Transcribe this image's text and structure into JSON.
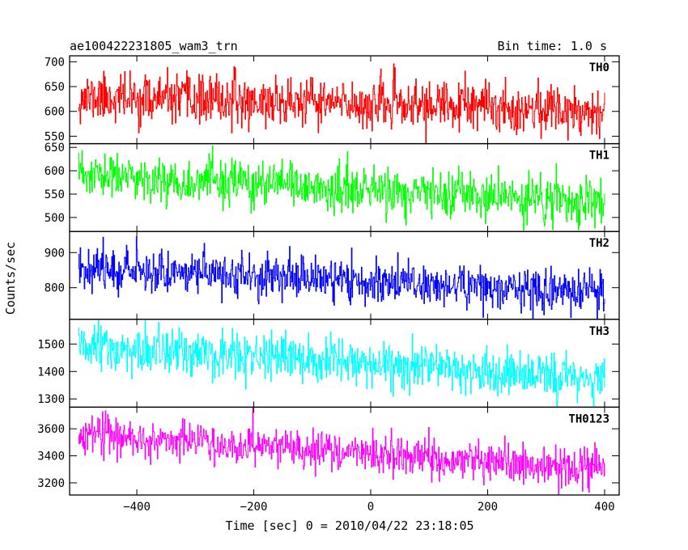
{
  "chart_data": {
    "type": "line",
    "title": "ae100422231805_wam3_trn",
    "subtitle": "Bin time: 1.0 s",
    "xlabel": "Time [sec] 0 = 2010/04/22 23:18:05",
    "ylabel": "Counts/sec",
    "xlim": [
      -515,
      425
    ],
    "x_ticks": [
      -400,
      -200,
      0,
      200,
      400
    ],
    "x_tick_labels": [
      "−400",
      "−200",
      "0",
      "200",
      "400"
    ],
    "x_data_range": [
      -500,
      400
    ],
    "x_step": 1.0,
    "grid": false,
    "legend": "none",
    "panels": [
      {
        "label": "TH0",
        "color": "#ff0000",
        "ylim": [
          535,
          712
        ],
        "y_ticks": [
          550,
          600,
          650,
          700
        ],
        "y_tick_labels": [
          "550",
          "600",
          "650",
          "700"
        ],
        "trend_start": 628,
        "trend_end": 603,
        "noise_sd": 24,
        "seed": 11
      },
      {
        "label": "TH1",
        "color": "#00ff00",
        "ylim": [
          470,
          658
        ],
        "y_ticks": [
          500,
          550,
          600,
          650
        ],
        "y_tick_labels": [
          "500",
          "550",
          "600",
          "650"
        ],
        "trend_start": 590,
        "trend_end": 530,
        "noise_sd": 24,
        "seed": 23
      },
      {
        "label": "TH2",
        "color": "#0000ff",
        "ylim": [
          710,
          960
        ],
        "y_ticks": [
          800,
          900
        ],
        "y_tick_labels": [
          "800",
          "900"
        ],
        "trend_start": 860,
        "trend_end": 785,
        "noise_sd": 30,
        "seed": 37
      },
      {
        "label": "TH3",
        "color": "#00ffff",
        "ylim": [
          1270,
          1590
        ],
        "y_ticks": [
          1300,
          1400,
          1500
        ],
        "y_tick_labels": [
          "1300",
          "1400",
          "1500"
        ],
        "trend_start": 1485,
        "trend_end": 1375,
        "noise_sd": 42,
        "seed": 51
      },
      {
        "label": "TH0123",
        "color": "#ff00ff",
        "ylim": [
          3110,
          3760
        ],
        "y_ticks": [
          3200,
          3400,
          3600
        ],
        "y_tick_labels": [
          "3200",
          "3400",
          "3600"
        ],
        "trend_start": 3560,
        "trend_end": 3300,
        "noise_sd": 70,
        "seed": 67
      }
    ]
  }
}
